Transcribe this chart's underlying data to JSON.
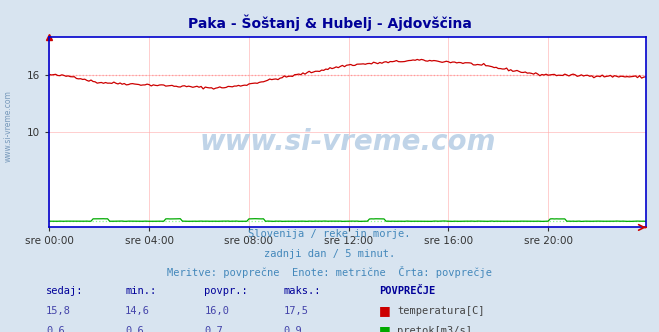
{
  "title": "Paka - Šoštanj & Hubelj - Ajdovščina",
  "title_color": "#000099",
  "bg_color": "#d8e4f0",
  "plot_bg_color": "#ffffff",
  "grid_color": "#ffaaaa",
  "axis_color": "#0000cc",
  "x_tick_labels": [
    "sre 00:00",
    "sre 04:00",
    "sre 08:00",
    "sre 12:00",
    "sre 16:00",
    "sre 20:00"
  ],
  "x_tick_positions": [
    0,
    48,
    96,
    144,
    192,
    240
  ],
  "n_points": 288,
  "ylim": [
    0,
    20
  ],
  "ytick_positions": [
    10,
    16
  ],
  "ytick_labels": [
    "10",
    "16"
  ],
  "temp_color": "#cc0000",
  "flow_color": "#00aa00",
  "avg_temp_color": "#ff8888",
  "avg_flow_color": "#88ff88",
  "avg_temp": 16.0,
  "avg_flow": 0.7,
  "watermark": "www.si-vreme.com",
  "watermark_color": "#c0d4e8",
  "subtitle1": "Slovenija / reke in morje.",
  "subtitle2": "zadnji dan / 5 minut.",
  "subtitle3": "Meritve: povprečne  Enote: metrične  Črta: povprečje",
  "subtitle_color": "#4488bb",
  "table_color_header": "#000099",
  "table_color_values": "#4444aa",
  "temp_current": "15,8",
  "temp_min": "14,6",
  "temp_avg": "16,0",
  "temp_max": "17,5",
  "flow_current": "0,6",
  "flow_min": "0,6",
  "flow_avg": "0,7",
  "flow_max": "0,9",
  "left_label": "www.si-vreme.com",
  "left_label_color": "#7799bb"
}
